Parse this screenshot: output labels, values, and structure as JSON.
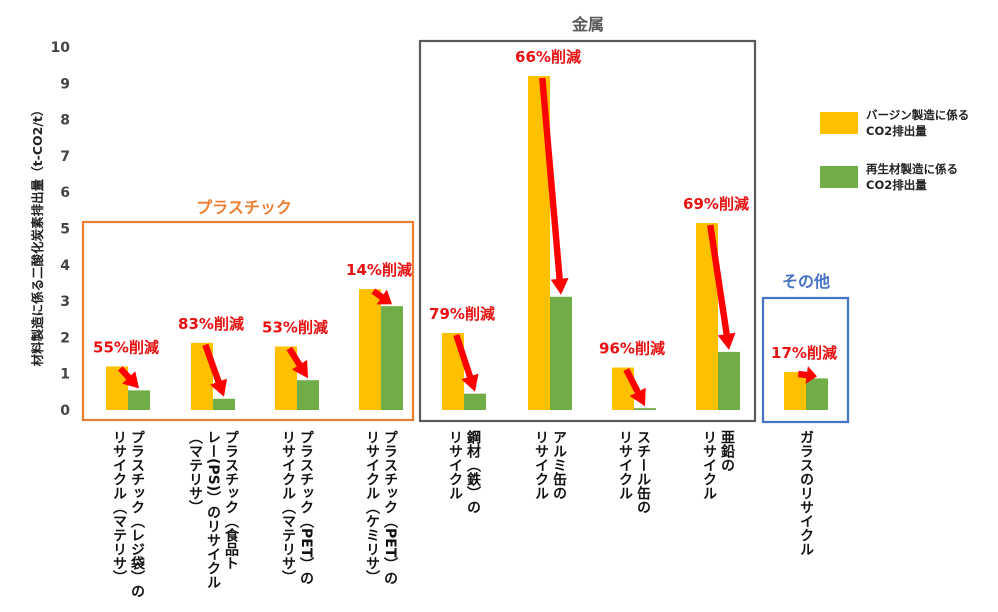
{
  "chart_data": {
    "type": "bar",
    "ylabel": "材料製造に係る二酸化炭素排出量（t-CO2/t）",
    "ylim": [
      0,
      10
    ],
    "yticks": [
      0,
      1,
      2,
      3,
      4,
      5,
      6,
      7,
      8,
      9,
      10
    ],
    "categories": [
      [
        "プラスチック（レジ袋）の",
        "リサイクル（マテリサ）"
      ],
      [
        "プラスチック（食品ト",
        "レー(PS)）のリサイクル",
        "（マテリサ）"
      ],
      [
        "プラスチック（PET）の",
        "リサイクル（マテリサ）"
      ],
      [
        "プラスチック（PET）の",
        "リサイクル（ケミリサ）"
      ],
      [
        "鋼材（鉄）の",
        "リサイクル"
      ],
      [
        "アルミ缶の",
        "リサイクル"
      ],
      [
        "スチール缶の",
        "リサイクル"
      ],
      [
        "亜鉛の",
        "リサイクル"
      ],
      [
        "ガラスのリサイクル"
      ]
    ],
    "series": [
      {
        "name": "バージン製造に係る CO2排出量",
        "legend_lines": [
          "バージン製造に係る",
          "CO2排出量"
        ],
        "color": "#ffc000",
        "values": [
          1.2,
          1.85,
          1.75,
          3.33,
          2.12,
          9.2,
          1.17,
          5.15,
          1.05
        ]
      },
      {
        "name": "再生材製造に係る CO2排出量",
        "legend_lines": [
          "再生材製造に係る",
          "CO2排出量"
        ],
        "color": "#70ad47",
        "values": [
          0.54,
          0.31,
          0.82,
          2.86,
          0.45,
          3.12,
          0.05,
          1.6,
          0.87
        ]
      }
    ],
    "reductions": [
      "55%削減",
      "83%削減",
      "53%削減",
      "14%削減",
      "79%削減",
      "66%削減",
      "96%削減",
      "69%削減",
      "17%削減"
    ],
    "groups": [
      {
        "label": "プラスチック",
        "color": "#ed7d31",
        "first": 0,
        "last": 3
      },
      {
        "label": "金属",
        "color": "#595959",
        "first": 4,
        "last": 7
      },
      {
        "label": "その他",
        "color": "#4472c4",
        "first": 8,
        "last": 8
      }
    ],
    "arrow_color": "#ff0000",
    "grid": false,
    "legend_position": "right"
  }
}
